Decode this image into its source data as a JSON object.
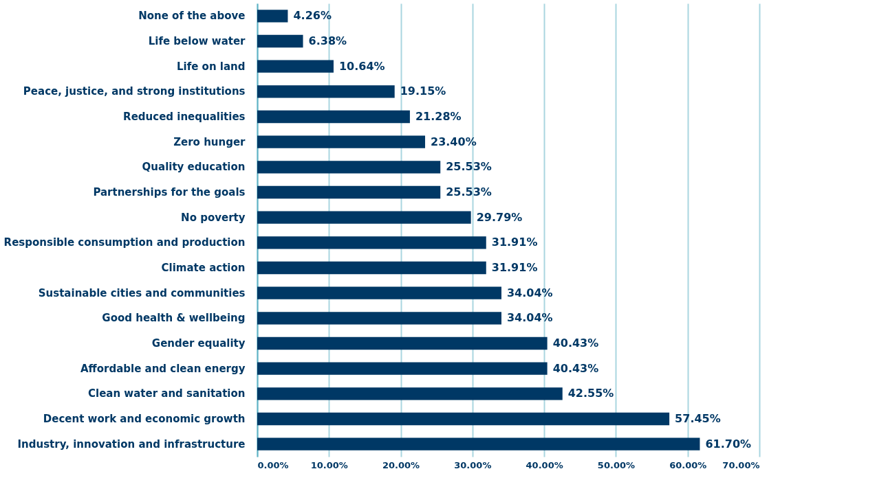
{
  "chart_data": {
    "type": "bar",
    "orientation": "horizontal",
    "categories": [
      "None of the above",
      "Life below water",
      "Life on land",
      "Peace, justice, and strong institutions",
      "Reduced inequalities",
      "Zero hunger",
      "Quality education",
      "Partnerships for the goals",
      "No poverty",
      "Responsible consumption and production",
      "Climate action",
      "Sustainable cities and communities",
      "Good health & wellbeing",
      "Gender equality",
      "Affordable and clean energy",
      "Clean water and sanitation",
      "Decent work and economic growth",
      "Industry, innovation and infrastructure"
    ],
    "values": [
      4.26,
      6.38,
      10.64,
      19.15,
      21.28,
      23.4,
      25.53,
      25.53,
      29.79,
      31.91,
      31.91,
      34.04,
      34.04,
      40.43,
      40.43,
      42.55,
      57.45,
      61.7
    ],
    "value_labels": [
      "4.26%",
      "6.38%",
      "10.64%",
      "19.15%",
      "21.28%",
      "23.40%",
      "25.53%",
      "25.53%",
      "29.79%",
      "31.91%",
      "31.91%",
      "34.04%",
      "34.04%",
      "40.43%",
      "40.43%",
      "42.55%",
      "57.45%",
      "61.70%"
    ],
    "color": "#003865",
    "xlim": [
      0,
      70
    ],
    "xticks": [
      {
        "value": 0,
        "label": "0.00%"
      },
      {
        "value": 10,
        "label": "10.00%"
      },
      {
        "value": 20,
        "label": "20.00%"
      },
      {
        "value": 30,
        "label": "30.00%"
      },
      {
        "value": 40,
        "label": "40.00%"
      },
      {
        "value": 50,
        "label": "50.00%"
      },
      {
        "value": 60,
        "label": "60.00%"
      },
      {
        "value": 70,
        "label": "70.00%"
      }
    ],
    "grid": "x"
  }
}
